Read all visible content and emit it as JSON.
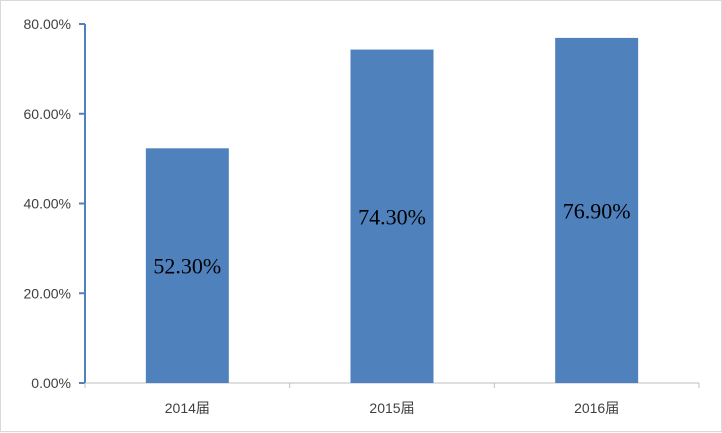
{
  "chart_data": {
    "type": "bar",
    "categories": [
      "2014届",
      "2015届",
      "2016届"
    ],
    "values": [
      52.3,
      74.3,
      76.9
    ],
    "data_labels": [
      "52.30%",
      "74.30%",
      "76.90%"
    ],
    "y_ticks": [
      0,
      20,
      40,
      60,
      80
    ],
    "y_tick_labels": [
      "0.00%",
      "20.00%",
      "40.00%",
      "60.00%",
      "80.00%"
    ],
    "ylim": [
      0,
      80
    ],
    "grid": false,
    "legend": "none",
    "title": "",
    "xlabel": "",
    "ylabel": "",
    "colors": {
      "bar": "#4F81BD",
      "axis": "#4F81BD",
      "background": "#FFFFFF"
    }
  }
}
